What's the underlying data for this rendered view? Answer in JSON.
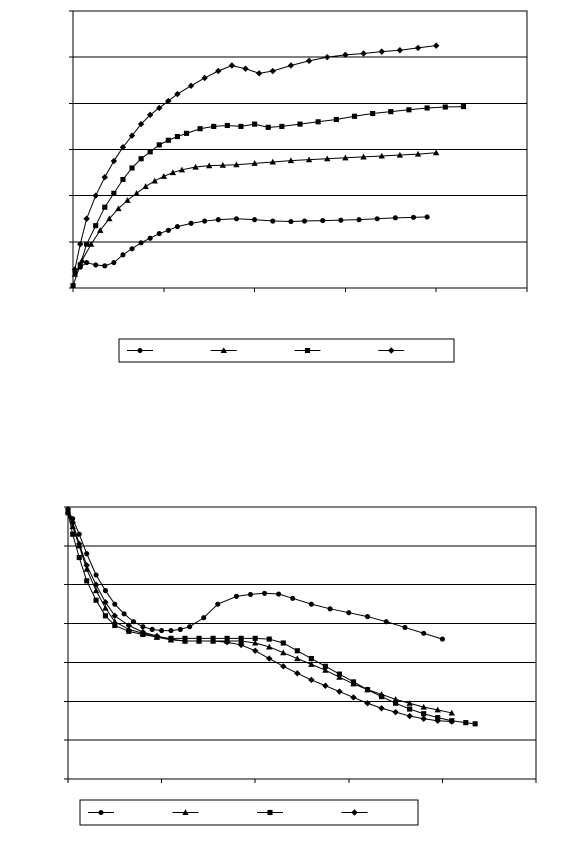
{
  "chart_data": [
    {
      "type": "line",
      "xlim": [
        0,
        5
      ],
      "ylim": [
        0,
        6
      ],
      "grid": "horizontal",
      "legend_position": "bottom",
      "series": [
        {
          "marker": "circle",
          "x": [
            0.02,
            0.08,
            0.15,
            0.25,
            0.35,
            0.45,
            0.55,
            0.65,
            0.75,
            0.85,
            0.95,
            1.05,
            1.15,
            1.3,
            1.45,
            1.6,
            1.8,
            2.0,
            2.2,
            2.4,
            2.55,
            2.75,
            2.95,
            3.15,
            3.35,
            3.55,
            3.75,
            3.9
          ],
          "y": [
            0.35,
            0.45,
            0.55,
            0.5,
            0.48,
            0.55,
            0.72,
            0.85,
            0.98,
            1.08,
            1.18,
            1.25,
            1.33,
            1.4,
            1.45,
            1.48,
            1.5,
            1.48,
            1.45,
            1.44,
            1.45,
            1.46,
            1.47,
            1.48,
            1.5,
            1.52,
            1.53,
            1.54
          ]
        },
        {
          "marker": "triangle",
          "x": [
            0.02,
            0.1,
            0.2,
            0.3,
            0.4,
            0.5,
            0.6,
            0.7,
            0.8,
            0.9,
            1.0,
            1.1,
            1.2,
            1.35,
            1.5,
            1.65,
            1.8,
            2.0,
            2.2,
            2.4,
            2.6,
            2.8,
            3.0,
            3.2,
            3.4,
            3.6,
            3.8,
            4.0
          ],
          "y": [
            0.3,
            0.6,
            0.95,
            1.25,
            1.5,
            1.72,
            1.9,
            2.05,
            2.2,
            2.32,
            2.42,
            2.5,
            2.56,
            2.62,
            2.65,
            2.66,
            2.67,
            2.7,
            2.73,
            2.76,
            2.78,
            2.8,
            2.82,
            2.84,
            2.86,
            2.88,
            2.9,
            2.93
          ]
        },
        {
          "marker": "square",
          "x": [
            0.0,
            0.08,
            0.15,
            0.25,
            0.35,
            0.45,
            0.55,
            0.65,
            0.75,
            0.85,
            0.95,
            1.05,
            1.15,
            1.25,
            1.4,
            1.55,
            1.7,
            1.85,
            2.0,
            2.15,
            2.3,
            2.5,
            2.7,
            2.9,
            3.1,
            3.3,
            3.5,
            3.7,
            3.9,
            4.1,
            4.3
          ],
          "y": [
            0.05,
            0.5,
            0.95,
            1.35,
            1.75,
            2.05,
            2.35,
            2.6,
            2.8,
            2.95,
            3.1,
            3.2,
            3.28,
            3.35,
            3.45,
            3.5,
            3.52,
            3.5,
            3.55,
            3.48,
            3.5,
            3.55,
            3.6,
            3.65,
            3.72,
            3.78,
            3.82,
            3.86,
            3.9,
            3.92,
            3.93
          ]
        },
        {
          "marker": "diamond",
          "x": [
            0.02,
            0.08,
            0.15,
            0.25,
            0.35,
            0.45,
            0.55,
            0.65,
            0.75,
            0.85,
            0.95,
            1.05,
            1.15,
            1.3,
            1.45,
            1.6,
            1.75,
            1.9,
            2.05,
            2.2,
            2.4,
            2.6,
            2.8,
            3.0,
            3.2,
            3.4,
            3.6,
            3.8,
            4.0
          ],
          "y": [
            0.4,
            0.95,
            1.5,
            2.0,
            2.4,
            2.75,
            3.05,
            3.3,
            3.55,
            3.75,
            3.9,
            4.05,
            4.2,
            4.38,
            4.55,
            4.7,
            4.82,
            4.75,
            4.65,
            4.7,
            4.82,
            4.92,
            5.0,
            5.05,
            5.08,
            5.12,
            5.15,
            5.2,
            5.25
          ]
        }
      ],
      "legend": {
        "entries": [
          "",
          "",
          "",
          ""
        ]
      }
    },
    {
      "type": "line",
      "xlim": [
        0,
        5
      ],
      "ylim": [
        0,
        7
      ],
      "grid": "horizontal",
      "legend_position": "bottom",
      "series": [
        {
          "marker": "circle",
          "x": [
            0.0,
            0.05,
            0.12,
            0.2,
            0.3,
            0.4,
            0.5,
            0.6,
            0.7,
            0.8,
            0.9,
            1.0,
            1.1,
            1.2,
            1.3,
            1.45,
            1.6,
            1.8,
            1.95,
            2.1,
            2.25,
            2.4,
            2.6,
            2.8,
            3.0,
            3.2,
            3.4,
            3.6,
            3.8,
            4.0
          ],
          "y": [
            6.9,
            6.7,
            6.3,
            5.8,
            5.25,
            4.85,
            4.5,
            4.25,
            4.05,
            3.92,
            3.85,
            3.82,
            3.82,
            3.85,
            3.92,
            4.15,
            4.5,
            4.7,
            4.75,
            4.78,
            4.76,
            4.65,
            4.5,
            4.38,
            4.28,
            4.18,
            4.05,
            3.9,
            3.75,
            3.6
          ]
        },
        {
          "marker": "triangle",
          "x": [
            0.0,
            0.05,
            0.12,
            0.2,
            0.3,
            0.4,
            0.5,
            0.65,
            0.8,
            0.95,
            1.1,
            1.25,
            1.4,
            1.55,
            1.7,
            1.85,
            2.0,
            2.15,
            2.3,
            2.45,
            2.6,
            2.75,
            2.9,
            3.05,
            3.2,
            3.35,
            3.5,
            3.65,
            3.8,
            3.95,
            4.1
          ],
          "y": [
            6.9,
            6.5,
            6.0,
            5.4,
            4.85,
            4.4,
            4.05,
            3.85,
            3.75,
            3.65,
            3.58,
            3.55,
            3.55,
            3.55,
            3.55,
            3.55,
            3.5,
            3.4,
            3.25,
            3.1,
            2.95,
            2.8,
            2.62,
            2.45,
            2.3,
            2.18,
            2.05,
            1.95,
            1.85,
            1.78,
            1.7
          ]
        },
        {
          "marker": "square",
          "x": [
            0.0,
            0.05,
            0.12,
            0.2,
            0.3,
            0.4,
            0.5,
            0.65,
            0.8,
            0.95,
            1.1,
            1.25,
            1.4,
            1.55,
            1.7,
            1.85,
            2.0,
            2.15,
            2.3,
            2.45,
            2.6,
            2.75,
            2.9,
            3.05,
            3.2,
            3.35,
            3.5,
            3.65,
            3.8,
            3.95,
            4.1,
            4.25,
            4.35
          ],
          "y": [
            6.85,
            6.3,
            5.7,
            5.1,
            4.6,
            4.2,
            3.95,
            3.8,
            3.72,
            3.65,
            3.62,
            3.62,
            3.62,
            3.62,
            3.62,
            3.62,
            3.62,
            3.6,
            3.5,
            3.3,
            3.1,
            2.9,
            2.7,
            2.5,
            2.3,
            2.12,
            1.95,
            1.8,
            1.68,
            1.58,
            1.5,
            1.45,
            1.42
          ]
        },
        {
          "marker": "diamond",
          "x": [
            0.0,
            0.05,
            0.12,
            0.2,
            0.3,
            0.4,
            0.5,
            0.65,
            0.8,
            0.95,
            1.1,
            1.25,
            1.4,
            1.55,
            1.7,
            1.85,
            2.0,
            2.15,
            2.3,
            2.45,
            2.6,
            2.75,
            2.9,
            3.05,
            3.2,
            3.35,
            3.5,
            3.65,
            3.8,
            3.95,
            4.1
          ],
          "y": [
            6.95,
            6.6,
            6.05,
            5.5,
            5.0,
            4.55,
            4.2,
            3.95,
            3.78,
            3.68,
            3.6,
            3.55,
            3.55,
            3.55,
            3.52,
            3.45,
            3.3,
            3.1,
            2.9,
            2.72,
            2.55,
            2.4,
            2.25,
            2.1,
            1.95,
            1.82,
            1.72,
            1.62,
            1.55,
            1.5,
            1.48
          ]
        }
      ],
      "legend": {
        "entries": [
          "",
          "",
          "",
          ""
        ]
      }
    }
  ]
}
